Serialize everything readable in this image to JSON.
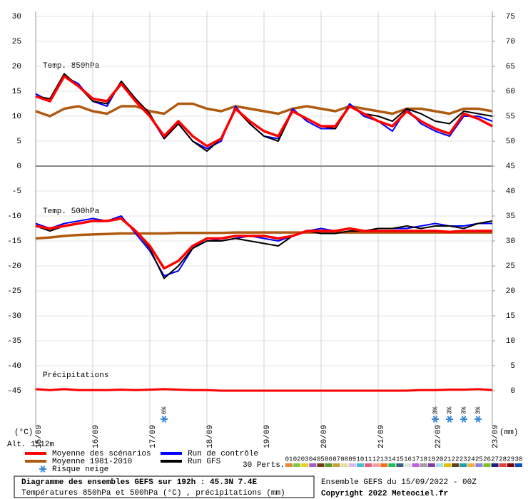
{
  "chart_data": {
    "type": "line",
    "title": "Diagramme des ensembles GEFS sur 192h : 45.3N 7.4E",
    "subtitle": "Températures 850hPa et 500hPa (°C) , précipitations (mm)",
    "run_info": "Ensemble GEFS du 15/09/2022 - 00Z",
    "copyright": "Copyright 2022 Meteociel.fr",
    "altitude": "Alt. 1512m",
    "ylabel": "(°C)",
    "y2label": "(mm)",
    "annotations": [
      "Temp. 850hPa",
      "Temp. 500hPa",
      "Précipitations"
    ],
    "x": [
      0,
      6,
      12,
      18,
      24,
      30,
      36,
      42,
      48,
      54,
      60,
      66,
      72,
      78,
      84,
      90,
      96,
      102,
      108,
      114,
      120,
      126,
      132,
      138,
      144,
      150,
      156,
      162,
      168,
      174,
      180,
      186,
      192
    ],
    "xlim": [
      0,
      192
    ],
    "xticks": [
      {
        "value": 0,
        "label": "15/09"
      },
      {
        "value": 24,
        "label": "16/09"
      },
      {
        "value": 48,
        "label": "17/09"
      },
      {
        "value": 72,
        "label": "18/09"
      },
      {
        "value": 96,
        "label": "19/09"
      },
      {
        "value": 120,
        "label": "20/09"
      },
      {
        "value": 144,
        "label": "21/09"
      },
      {
        "value": 168,
        "label": "22/09"
      },
      {
        "value": 192,
        "label": "23/09"
      }
    ],
    "ylim": [
      -52.5,
      31
    ],
    "yticks": [
      -45,
      -40,
      -35,
      -30,
      -25,
      -20,
      -15,
      -10,
      -5,
      0,
      5,
      10,
      15,
      20,
      25,
      30
    ],
    "y2lim": [
      -7.5,
      76
    ],
    "y2ticks": [
      0,
      5,
      10,
      15,
      20,
      25,
      30,
      35,
      40,
      45,
      50,
      55,
      60,
      65,
      70,
      75
    ],
    "grid": true,
    "series": [
      {
        "name": "Moyenne des scénarios",
        "color": "#ff0000",
        "values": [
          14,
          13,
          18,
          16,
          13.5,
          13,
          16.5,
          13,
          10,
          6,
          9,
          6,
          4,
          5.5,
          11.5,
          9,
          7,
          6,
          11,
          9.5,
          8,
          8,
          12,
          10.5,
          9,
          8,
          11,
          9,
          7.5,
          6.5,
          10.5,
          9.5,
          8
        ],
        "values_500": [
          -12,
          -12.5,
          -12,
          -11.5,
          -11,
          -11,
          -10.5,
          -13,
          -16,
          -20.5,
          -19,
          -16,
          -14.5,
          -14.5,
          -14,
          -14,
          -14,
          -14.5,
          -14,
          -13,
          -13,
          -13,
          -12.5,
          -13,
          -13,
          -13,
          -13,
          -13,
          -13,
          -13.2,
          -13,
          -13,
          -13
        ]
      },
      {
        "name": "Moyenne 1981-2010",
        "color": "#b05a10",
        "values": [
          11,
          10,
          11.5,
          12,
          11,
          10.5,
          12,
          12,
          11,
          10.5,
          12.5,
          12.5,
          11.5,
          11,
          12,
          11.5,
          11,
          10.5,
          11.5,
          12,
          11.5,
          11,
          12,
          11.5,
          11,
          10.5,
          11.5,
          11.5,
          11,
          10.5,
          11.5,
          11.5,
          11
        ],
        "values_500": [
          -14.5,
          -14.3,
          -14,
          -13.8,
          -13.7,
          -13.6,
          -13.5,
          -13.5,
          -13.5,
          -13.5,
          -13.4,
          -13.4,
          -13.4,
          -13.4,
          -13.3,
          -13.3,
          -13.3,
          -13.3,
          -13.3,
          -13.3,
          -13.3,
          -13.3,
          -13.3,
          -13.3,
          -13.3,
          -13.3,
          -13.3,
          -13.3,
          -13.3,
          -13.3,
          -13.3,
          -13.3,
          -13.3
        ]
      },
      {
        "name": "Run de contrôle",
        "color": "#0000ff",
        "values": [
          14.5,
          13,
          18,
          16.5,
          13,
          12,
          17,
          13.5,
          10,
          5.5,
          8.5,
          5,
          3.5,
          5,
          12,
          8.5,
          6,
          5.5,
          11.5,
          9,
          7.5,
          7.5,
          12.5,
          10,
          9,
          7,
          11.5,
          8.5,
          7,
          6,
          10,
          10,
          9
        ],
        "values_500": [
          -11.5,
          -12.5,
          -11.5,
          -11,
          -10.5,
          -11,
          -10,
          -13.5,
          -17,
          -22,
          -21,
          -16.5,
          -14.5,
          -15,
          -14.5,
          -14,
          -14.5,
          -15,
          -14,
          -13,
          -12.5,
          -13,
          -12.5,
          -13,
          -12.5,
          -12.5,
          -12.5,
          -12,
          -11.5,
          -12,
          -12,
          -11.5,
          -11.5
        ]
      },
      {
        "name": "Run GFS",
        "color": "#000000",
        "values": [
          14,
          13.5,
          18.5,
          16,
          13,
          12.5,
          17,
          13.5,
          10.5,
          5.5,
          8.5,
          5,
          3,
          5.5,
          11.5,
          8.5,
          6,
          5,
          11,
          9.5,
          8,
          7.5,
          12,
          10.5,
          10,
          9,
          11.5,
          10.5,
          9,
          8.5,
          11,
          10.5,
          10
        ],
        "values_500": [
          -12,
          -13,
          -12,
          -11.5,
          -11,
          -11,
          -10.5,
          -13,
          -16.5,
          -22.5,
          -20,
          -16.5,
          -15,
          -15,
          -14.5,
          -15,
          -15.5,
          -16,
          -14,
          -13,
          -13.5,
          -13.5,
          -13,
          -13,
          -12.5,
          -12.5,
          -12,
          -12.5,
          -12,
          -12,
          -12.5,
          -11.5,
          -11
        ]
      }
    ],
    "precipitation": {
      "name": "Moyenne des scénarios",
      "color": "#ff0000",
      "axis": "y2",
      "values": [
        0.3,
        0.1,
        0.3,
        0.1,
        0.1,
        0.1,
        0.2,
        0.1,
        0.2,
        0.3,
        0.2,
        0.1,
        0.1,
        0,
        0,
        0,
        0,
        0,
        0,
        0,
        0,
        0,
        0,
        0,
        0,
        0,
        0,
        0.1,
        0.1,
        0.2,
        0.2,
        0.3,
        0.1
      ]
    },
    "snow_risk": {
      "name": "Risque neige",
      "x": [
        54,
        168,
        174,
        180,
        186
      ],
      "values": [
        6,
        3,
        3,
        3,
        3
      ],
      "value_labels": [
        "6%",
        "3%",
        "3%",
        "3%",
        "3%"
      ]
    },
    "perturbations": {
      "label": "30 Perts.",
      "members": [
        {
          "name": "01",
          "color": "#e8883a"
        },
        {
          "name": "02",
          "color": "#7fc84a"
        },
        {
          "name": "03",
          "color": "#e8d020"
        },
        {
          "name": "04",
          "color": "#a060c8"
        },
        {
          "name": "05",
          "color": "#704018"
        },
        {
          "name": "06",
          "color": "#5a9a30"
        },
        {
          "name": "07",
          "color": "#c8a040"
        },
        {
          "name": "08",
          "color": "#e0e0a0"
        },
        {
          "name": "09",
          "color": "#d8b8f0"
        },
        {
          "name": "10",
          "color": "#40c0d0"
        },
        {
          "name": "11",
          "color": "#e06080"
        },
        {
          "name": "12",
          "color": "#f0a0a0"
        },
        {
          "name": "13",
          "color": "#f07020"
        },
        {
          "name": "14",
          "color": "#20c060"
        },
        {
          "name": "15",
          "color": "#406080"
        },
        {
          "name": "16",
          "color": "#e0e0e0"
        },
        {
          "name": "17",
          "color": "#c060e0"
        },
        {
          "name": "18",
          "color": "#a0a0a0"
        },
        {
          "name": "19",
          "color": "#8040a0"
        },
        {
          "name": "20",
          "color": "#a0e0e0"
        },
        {
          "name": "21",
          "color": "#e0c000"
        },
        {
          "name": "22",
          "color": "#604020"
        },
        {
          "name": "23",
          "color": "#20a0a0"
        },
        {
          "name": "24",
          "color": "#f0b040"
        },
        {
          "name": "25",
          "color": "#9080e0"
        },
        {
          "name": "26",
          "color": "#80c020"
        },
        {
          "name": "27",
          "color": "#202080"
        },
        {
          "name": "28",
          "color": "#e04040"
        },
        {
          "name": "29",
          "color": "#800000"
        },
        {
          "name": "30",
          "color": "#0050c0"
        }
      ]
    }
  }
}
